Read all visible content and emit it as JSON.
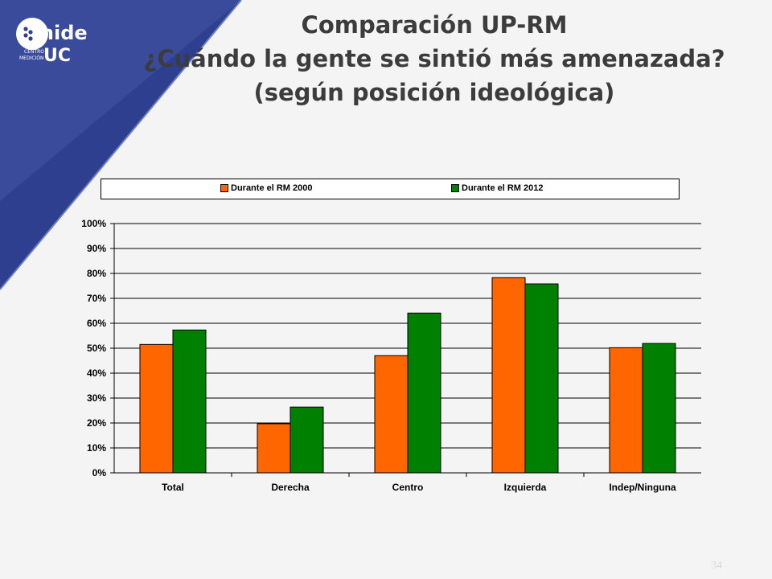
{
  "header": {
    "title_lines": [
      "Comparación UP-RM",
      "¿Cuándo la gente se sintió más amenazada?",
      "(según posición ideológica)"
    ]
  },
  "logo": {
    "name_text": "mide",
    "uc_text": "UC",
    "sub_line1": "CENTRO",
    "sub_line2": "MEDICIÓN"
  },
  "colors": {
    "corner_dark": "#2f3f8f",
    "corner_light": "#5b6bb5",
    "series_2000": "#ff6600",
    "series_2012": "#008000"
  },
  "chart_data": {
    "type": "bar",
    "title": "",
    "xlabel": "",
    "ylabel": "",
    "categories": [
      "Total",
      "Derecha",
      "Centro",
      "Izquierda",
      "Indep/Ninguna"
    ],
    "series": [
      {
        "name": "Durante el RM 2000",
        "values": [
          51.5,
          19.7,
          47,
          78.3,
          50.2
        ]
      },
      {
        "name": "Durante el RM 2012",
        "values": [
          57.3,
          26.4,
          64.1,
          75.8,
          51.9
        ]
      }
    ],
    "ylim": [
      0,
      100
    ],
    "yticks": [
      "0%",
      "10%",
      "20%",
      "30%",
      "40%",
      "50%",
      "60%",
      "70%",
      "80%",
      "90%",
      "100%"
    ],
    "grid": true,
    "legend_position": "top"
  },
  "footer": {
    "page_number": "34"
  }
}
